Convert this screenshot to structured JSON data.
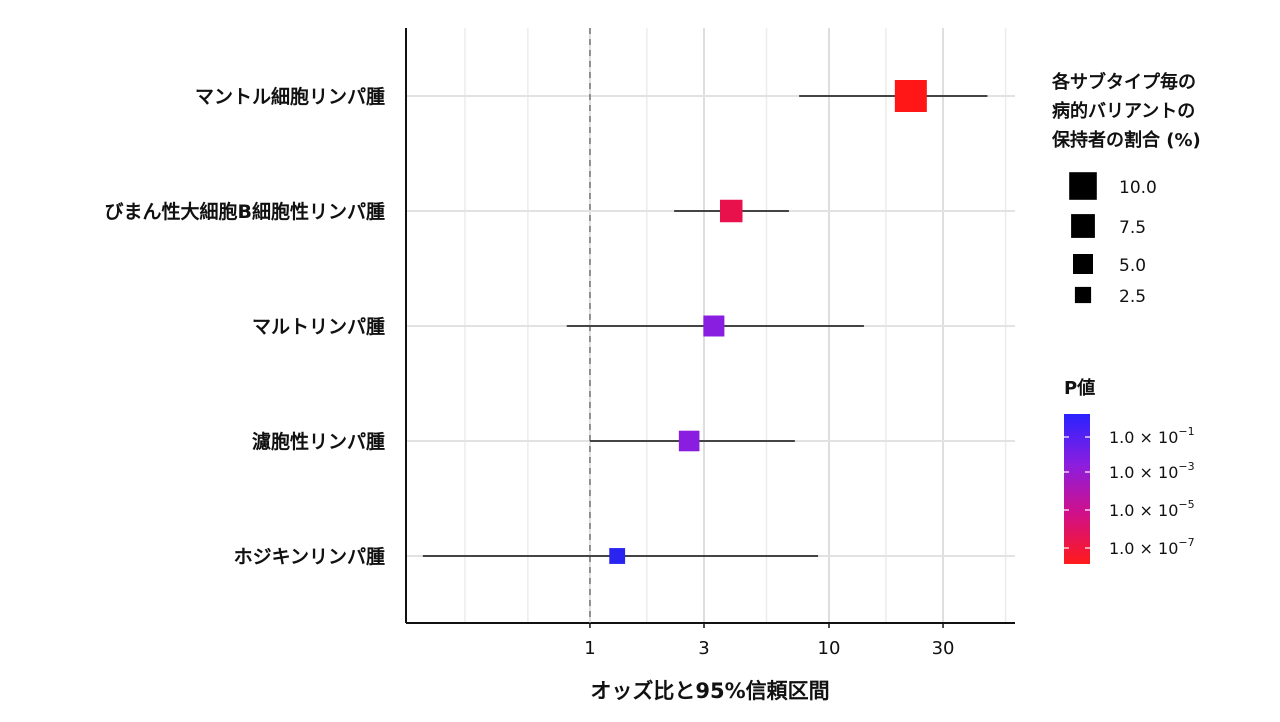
{
  "chart_data": {
    "type": "forest",
    "xlabel": "オッズ比と95%信頼区間",
    "x_scale": "log",
    "xlim": [
      0.17,
      60
    ],
    "x_ticks": [
      {
        "value": 1,
        "label": "1"
      },
      {
        "value": 3,
        "label": "3"
      },
      {
        "value": 10,
        "label": "10"
      },
      {
        "value": 30,
        "label": "30"
      }
    ],
    "reference_line": 1,
    "grid": true,
    "categories": [
      {
        "label": "マントル細胞リンパ腫",
        "or": 22,
        "ci": [
          7.5,
          46
        ],
        "pct": 10.0,
        "p": 1e-08,
        "color": "#ff1616"
      },
      {
        "label": "びまん性大細胞B細胞性リンパ腫",
        "or": 3.9,
        "ci": [
          2.25,
          6.8
        ],
        "pct": 5.0,
        "p": 2e-06,
        "color": "#e8114b"
      },
      {
        "label": "マルトリンパ腫",
        "or": 3.3,
        "ci": [
          0.8,
          14
        ],
        "pct": 4.2,
        "p": 0.03,
        "color": "#8a1ee0"
      },
      {
        "label": "濾胞性リンパ腫",
        "or": 2.6,
        "ci": [
          1.0,
          7.2
        ],
        "pct": 4.0,
        "p": 0.02,
        "color": "#8a1ee0"
      },
      {
        "label": "ホジキンリンパ腫",
        "or": 1.3,
        "ci": [
          0.2,
          9.0
        ],
        "pct": 1.5,
        "p": 0.5,
        "color": "#2a24f0"
      }
    ],
    "legend_size": {
      "title_lines": [
        "各サブタイプ毎の",
        "病的バリアントの",
        "保持者の割合 (%)"
      ],
      "items": [
        {
          "label": "10.0",
          "value": 10.0
        },
        {
          "label": "7.5",
          "value": 7.5
        },
        {
          "label": "5.0",
          "value": 5.0
        },
        {
          "label": "2.5",
          "value": 2.5
        }
      ]
    },
    "legend_color": {
      "title": "P値",
      "gradient": [
        "#2a22ff",
        "#8a1ee0",
        "#d0108a",
        "#ff1a1a"
      ],
      "items": [
        {
          "mantissa": "1.0",
          "exponent": "−1",
          "p": 0.1
        },
        {
          "mantissa": "1.0",
          "exponent": "−3",
          "p": 0.001
        },
        {
          "mantissa": "1.0",
          "exponent": "−5",
          "p": 1e-05
        },
        {
          "mantissa": "1.0",
          "exponent": "−7",
          "p": 1e-07
        }
      ]
    }
  }
}
